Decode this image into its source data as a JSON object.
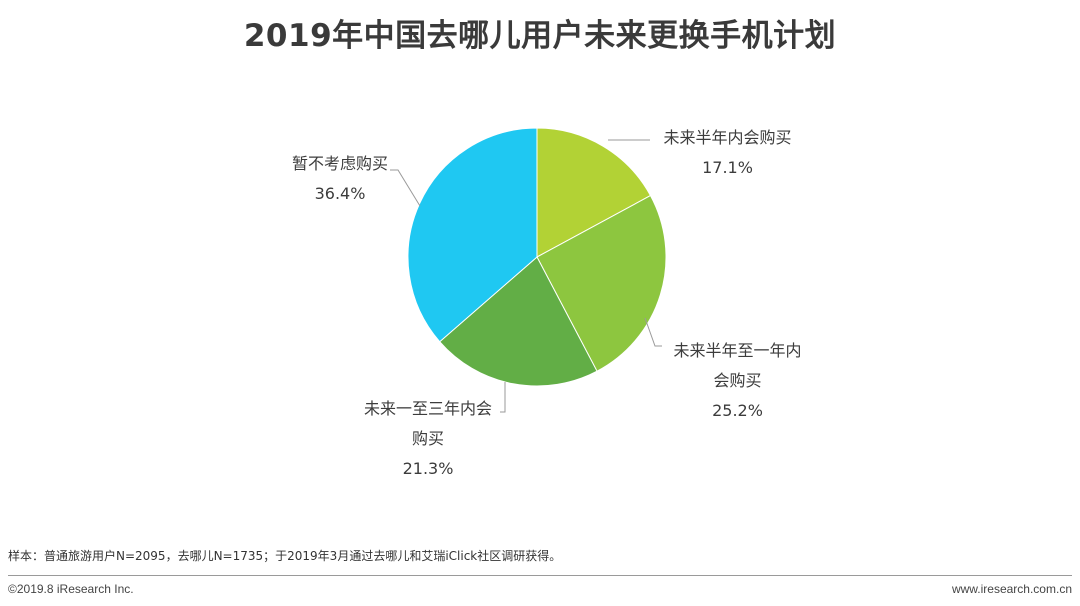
{
  "chart_data": {
    "type": "pie",
    "title": "2019年中国去哪儿用户未来更换手机计划",
    "slices": [
      {
        "label_lines": [
          "未来半年内会购买"
        ],
        "value": 17.1,
        "value_text": "17.1%",
        "color": "#B2D235"
      },
      {
        "label_lines": [
          "未来半年至一年内",
          "会购买"
        ],
        "value": 25.2,
        "value_text": "25.2%",
        "color": "#8DC63F"
      },
      {
        "label_lines": [
          "未来一至三年内会",
          "购买"
        ],
        "value": 21.3,
        "value_text": "21.3%",
        "color": "#62AE46"
      },
      {
        "label_lines": [
          "暂不考虑购买"
        ],
        "value": 36.4,
        "value_text": "36.4%",
        "color": "#1FC8F2"
      }
    ]
  },
  "note": "样本：普通旅游用户N=2095，去哪儿N=1735；于2019年3月通过去哪儿和艾瑞iClick社区调研获得。",
  "footer": {
    "copyright": "©2019.8 iResearch Inc.",
    "site": "www.iresearch.com.cn"
  }
}
